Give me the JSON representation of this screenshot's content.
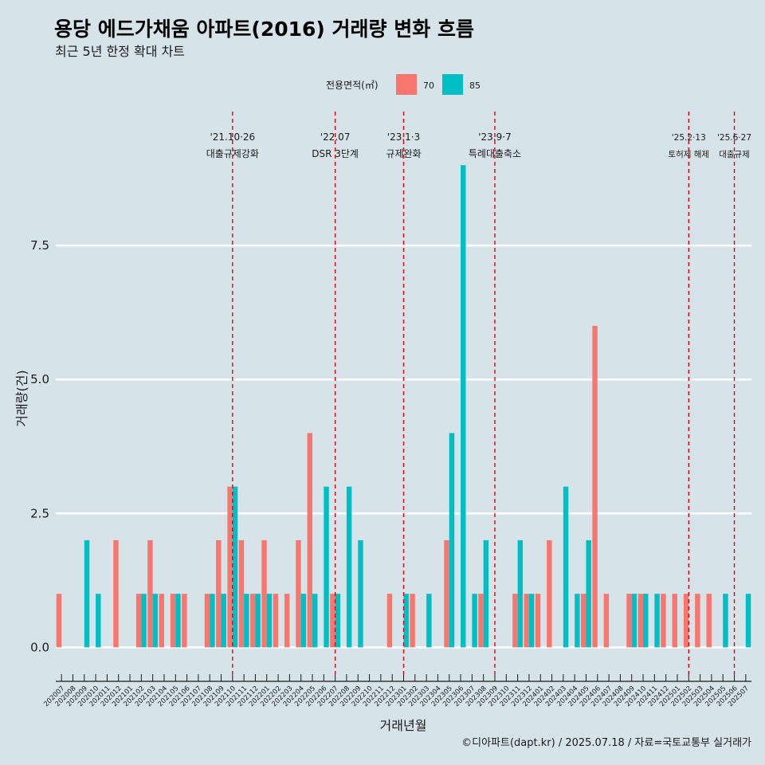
{
  "colors": {
    "background": "#d6e4ea",
    "series_70": "#f8766d",
    "series_85": "#00bfc4",
    "event_line": "#e8000b",
    "grid": "#ffffff"
  },
  "chart_data": {
    "type": "bar",
    "title": "용당 에드가채움 아파트(2016) 거래량 변화 흐름",
    "subtitle": "최근 5년 한정 확대 차트",
    "xlabel": "거래년월",
    "ylabel": "거래량(건)",
    "ylim": [
      -0.5,
      10.0
    ],
    "yticks": [
      0.0,
      2.5,
      5.0,
      7.5
    ],
    "ytick_labels": [
      "0.0",
      "2.5",
      "5.0",
      "7.5"
    ],
    "legend": {
      "title": "전용면적(㎡)",
      "position": "top",
      "entries": [
        "70",
        "85"
      ]
    },
    "categories": [
      "202007",
      "202008",
      "202009",
      "202010",
      "202011",
      "202012",
      "202101",
      "202102",
      "202103",
      "202104",
      "202105",
      "202106",
      "202107",
      "202108",
      "202109",
      "202110",
      "202111",
      "202112",
      "202201",
      "202202",
      "202203",
      "202204",
      "202205",
      "202206",
      "202207",
      "202208",
      "202209",
      "202210",
      "202211",
      "202212",
      "202301",
      "202302",
      "202303",
      "202304",
      "202305",
      "202306",
      "202307",
      "202308",
      "202309",
      "202310",
      "202311",
      "202312",
      "202401",
      "202402",
      "202403",
      "202404",
      "202405",
      "202406",
      "202407",
      "202408",
      "202409",
      "202410",
      "202411",
      "202412",
      "202501",
      "202502",
      "202503",
      "202504",
      "202505",
      "202506",
      "202507"
    ],
    "series": [
      {
        "name": "70",
        "values": [
          1,
          0,
          0,
          0,
          0,
          2,
          0,
          1,
          2,
          1,
          1,
          1,
          0,
          1,
          2,
          3,
          2,
          1,
          2,
          1,
          1,
          2,
          4,
          0,
          1,
          0,
          0,
          0,
          0,
          1,
          0,
          1,
          0,
          0,
          2,
          0,
          0,
          1,
          0,
          0,
          1,
          1,
          1,
          2,
          0,
          0,
          1,
          6,
          1,
          0,
          1,
          1,
          0,
          1,
          1,
          1,
          1,
          1,
          0,
          0,
          0
        ]
      },
      {
        "name": "85",
        "values": [
          0,
          0,
          2,
          1,
          0,
          0,
          0,
          1,
          1,
          0,
          1,
          0,
          0,
          1,
          1,
          3,
          1,
          1,
          1,
          0,
          0,
          1,
          1,
          3,
          1,
          3,
          2,
          0,
          0,
          0,
          1,
          0,
          1,
          0,
          4,
          9,
          1,
          2,
          0,
          0,
          2,
          1,
          0,
          0,
          3,
          1,
          2,
          0,
          0,
          0,
          1,
          1,
          1,
          0,
          0,
          0,
          0,
          0,
          1,
          0,
          1
        ]
      }
    ],
    "annotations": [
      {
        "category": "202110",
        "date": "'21.10·26",
        "label": "대출규제강화"
      },
      {
        "category": "202207",
        "date": "'22.07",
        "label": "DSR 3단계"
      },
      {
        "category": "202301",
        "date": "'23.1·3",
        "label": "규제완화"
      },
      {
        "category": "202309",
        "date": "'23.9·7",
        "label": "특례대출축소"
      },
      {
        "category": "202502",
        "date": "'25.2·13",
        "label": "토허제 해제"
      },
      {
        "category": "202506",
        "date": "'25.6·27",
        "label": "대출규제"
      }
    ],
    "caption": "©디아파트(dapt.kr) / 2025.07.18 / 자료=국토교통부 실거래가"
  }
}
